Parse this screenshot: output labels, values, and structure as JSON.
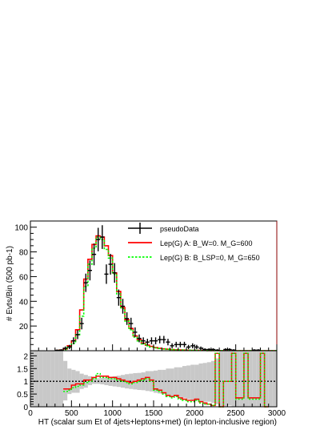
{
  "chart_data": [
    {
      "type": "line",
      "xlabel": "HT (scalar sum Et of 4jets+leptons+met) (in lepton-inclusive region)",
      "ylabel": "# Evts/Bin (500 pb-1)",
      "xlim": [
        0,
        3000
      ],
      "ylim": [
        0,
        105
      ],
      "xticks": [
        "0",
        "500",
        "1000",
        "1500",
        "2000",
        "2500",
        "3000"
      ],
      "yticks": [
        "20",
        "40",
        "60",
        "80",
        "100"
      ],
      "legend_position": "top-right",
      "series": [
        {
          "name": "pseudoData",
          "style": "points-with-error-bars",
          "color": "#000000",
          "x": [
            325,
            375,
            425,
            475,
            525,
            575,
            625,
            675,
            725,
            775,
            825,
            875,
            925,
            975,
            1025,
            1075,
            1125,
            1175,
            1225,
            1275,
            1325,
            1375,
            1425,
            1475,
            1525,
            1575,
            1625,
            1675,
            1725,
            1775,
            1825,
            1875,
            1925,
            1975,
            2025,
            2075,
            2125,
            2175,
            2225,
            2275,
            2375,
            2425,
            2475,
            2725,
            2775
          ],
          "y": [
            0.3,
            0.5,
            2,
            3,
            8,
            13,
            22,
            55,
            65,
            78,
            90,
            92,
            62,
            70,
            63,
            43,
            36,
            26,
            22,
            15,
            10,
            8,
            7,
            8,
            8,
            9,
            9,
            7,
            4,
            5,
            5,
            5,
            3,
            4,
            3,
            2,
            1,
            1,
            1,
            0.5,
            1,
            1,
            0.5,
            0.5,
            0.5
          ]
        },
        {
          "name": "Lep(G) A: B_W=0. M_G=600",
          "style": "step",
          "color": "#ff0000",
          "bin_width": 50,
          "x": [
            325,
            375,
            425,
            475,
            525,
            575,
            625,
            675,
            725,
            775,
            825,
            875,
            925,
            975,
            1025,
            1075,
            1125,
            1175,
            1225,
            1275,
            1325,
            1375,
            1425,
            1475,
            1525,
            1575,
            1625,
            1675,
            1725,
            1775,
            1825,
            1875,
            1925,
            1975,
            2025,
            2075,
            2125,
            2175,
            2225,
            2275,
            2325,
            2375,
            2425,
            2475,
            2525,
            2575,
            2625,
            2675,
            2725,
            2775,
            2825,
            2875,
            2925,
            2975
          ],
          "y": [
            0.2,
            0.5,
            1.5,
            4,
            8,
            17,
            33,
            58,
            74,
            86,
            93,
            92,
            85,
            77,
            63,
            48,
            35,
            25,
            18,
            12,
            9,
            6,
            4.5,
            3.5,
            2.5,
            2,
            1.5,
            1.2,
            1,
            0.8,
            0.6,
            0.5,
            0.4,
            0.3,
            0.3,
            0.2,
            0.2,
            0.1,
            0.1,
            0.1,
            0.1,
            0.1,
            0.1,
            0.1,
            0.05,
            0.05,
            0.05,
            0.05,
            0.05,
            0.05,
            0.05,
            0.05,
            0.05,
            0.05
          ]
        },
        {
          "name": "Lep(G) B: B_LSP=0, M_G=650",
          "style": "dashed-step",
          "color": "#00ff00",
          "bin_width": 50,
          "x": [
            325,
            375,
            425,
            475,
            525,
            575,
            625,
            675,
            725,
            775,
            825,
            875,
            925,
            975,
            1025,
            1075,
            1125,
            1175,
            1225,
            1275,
            1325,
            1375,
            1425,
            1475,
            1525,
            1575,
            1625,
            1675,
            1725,
            1775,
            1825,
            1875,
            1925,
            1975,
            2025,
            2075,
            2125,
            2175,
            2225,
            2275,
            2325,
            2375,
            2425,
            2475,
            2525,
            2575,
            2625,
            2675,
            2725,
            2775,
            2825,
            2875,
            2925,
            2975
          ],
          "y": [
            0.1,
            0.3,
            1,
            3,
            6,
            13,
            28,
            52,
            70,
            83,
            92,
            90,
            82,
            75,
            62,
            46,
            34,
            24,
            17,
            11,
            8,
            5.5,
            4,
            3,
            2.3,
            1.8,
            1.4,
            1.1,
            0.9,
            0.7,
            0.6,
            0.5,
            0.4,
            0.3,
            0.3,
            0.2,
            0.2,
            0.1,
            0.1,
            0.1,
            0.1,
            0.1,
            0.1,
            0.1,
            0.05,
            0.05,
            0.05,
            0.05,
            0.05,
            0.05,
            0.05,
            0.05,
            0.05,
            0.05
          ]
        }
      ]
    },
    {
      "type": "line",
      "xlabel": "HT (scalar sum Et of 4jets+leptons+met) (in lepton-inclusive region)",
      "xlim": [
        0,
        3000
      ],
      "ylim": [
        0,
        2.2
      ],
      "yticks": [
        "0",
        "0.5",
        "1",
        "1.5",
        "2"
      ],
      "reference_line": 1,
      "series": [
        {
          "name": "ratio A",
          "style": "step",
          "color": "#ff0000",
          "bin_width": 50,
          "x": [
            425,
            475,
            525,
            575,
            625,
            675,
            725,
            775,
            825,
            875,
            925,
            975,
            1025,
            1075,
            1125,
            1175,
            1225,
            1275,
            1325,
            1375,
            1425,
            1475,
            1525,
            1575,
            1625,
            1675,
            1725,
            1775,
            1825,
            1875,
            1925,
            1975,
            2025,
            2075,
            2125,
            2175,
            2225,
            2275,
            2325,
            2375,
            2425,
            2475,
            2525,
            2575,
            2625,
            2675,
            2725,
            2775,
            2825,
            2875
          ],
          "y": [
            0.7,
            0.7,
            0.85,
            0.9,
            0.9,
            1.05,
            1.05,
            1.15,
            1.2,
            1.2,
            1.2,
            1.15,
            1.15,
            1.1,
            1.05,
            1.0,
            0.95,
            1.0,
            1.05,
            1.1,
            1.15,
            1.05,
            0.7,
            0.65,
            0.55,
            0.45,
            0.4,
            0.45,
            0.35,
            0.3,
            0.25,
            0.25,
            0.3,
            0.2,
            0.15,
            0.1,
            0.05,
            2.1,
            0.0,
            1.0,
            1.0,
            2.1,
            0.35,
            0.35,
            2.1,
            0.35,
            0.35,
            0.35,
            2.1,
            0.0
          ]
        },
        {
          "name": "ratio B",
          "style": "dashed-step",
          "color": "#00ff00",
          "bin_width": 50,
          "x": [
            425,
            475,
            525,
            575,
            625,
            675,
            725,
            775,
            825,
            875,
            925,
            975,
            1025,
            1075,
            1125,
            1175,
            1225,
            1275,
            1325,
            1375,
            1425,
            1475,
            1525,
            1575,
            1625,
            1675,
            1725,
            1775,
            1825,
            1875,
            1925,
            1975,
            2025,
            2075,
            2125,
            2175,
            2225,
            2275,
            2325,
            2375,
            2425,
            2475,
            2525,
            2575,
            2625,
            2675,
            2725,
            2775,
            2825,
            2875
          ],
          "y": [
            0.6,
            0.65,
            0.75,
            0.8,
            0.85,
            0.95,
            1.0,
            1.1,
            1.3,
            1.15,
            1.15,
            1.1,
            1.1,
            1.05,
            1.0,
            0.95,
            0.9,
            0.95,
            1.0,
            1.05,
            1.1,
            1.0,
            0.65,
            0.6,
            0.5,
            0.4,
            0.35,
            0.4,
            0.3,
            0.25,
            0.2,
            0.2,
            0.25,
            0.15,
            0.1,
            0.1,
            0.05,
            2.1,
            0.0,
            1.0,
            1.0,
            2.1,
            0.3,
            0.3,
            2.1,
            0.3,
            0.3,
            0.3,
            2.1,
            0.0
          ]
        },
        {
          "name": "uncertainty band",
          "style": "band",
          "color": "#c8c8c8",
          "bin_width": 50,
          "x": [
            0,
            25,
            75,
            125,
            175,
            225,
            275,
            325,
            375,
            425,
            475,
            525,
            575,
            625,
            675,
            725,
            775,
            825,
            875,
            925,
            975,
            1025,
            1075,
            1125,
            1175,
            1225,
            1275,
            1325,
            1375,
            1425,
            1475,
            1525,
            1575,
            1625,
            1675,
            1725,
            1775,
            1825,
            1875,
            1925,
            1975,
            2025,
            2075,
            2125,
            2175,
            2225,
            2275,
            2325,
            2375,
            2425,
            2475,
            2525,
            2575,
            2625,
            2675,
            2725,
            2775,
            2825,
            2875,
            2925,
            2975
          ],
          "low": [
            0,
            0,
            0,
            0,
            0,
            0,
            0,
            0,
            0,
            0.25,
            0.5,
            0.55,
            0.55,
            0.7,
            0.75,
            0.85,
            0.9,
            0.9,
            0.88,
            0.85,
            0.82,
            0.8,
            0.78,
            0.75,
            0.72,
            0.7,
            0.68,
            0.66,
            0.65,
            0.62,
            0.6,
            0.55,
            0.52,
            0.5,
            0.45,
            0.42,
            0.4,
            0.38,
            0.35,
            0.3,
            0.28,
            0.25,
            0.22,
            0.2,
            0.2,
            0.15,
            0.1,
            0,
            0,
            0.05,
            0,
            0,
            0,
            0,
            0,
            0,
            0,
            0,
            0,
            0,
            0
          ],
          "high": [
            2.2,
            2.2,
            2.2,
            2.2,
            2.2,
            2.2,
            2.2,
            2.2,
            2.2,
            1.8,
            1.5,
            1.45,
            1.4,
            1.3,
            1.25,
            1.2,
            1.15,
            1.12,
            1.13,
            1.15,
            1.18,
            1.2,
            1.22,
            1.25,
            1.28,
            1.3,
            1.32,
            1.33,
            1.35,
            1.4,
            1.4,
            1.42,
            1.45,
            1.45,
            1.5,
            1.5,
            1.55,
            1.55,
            1.6,
            1.62,
            1.65,
            1.65,
            1.7,
            1.72,
            1.75,
            1.8,
            1.9,
            2.2,
            2.2,
            2.2,
            2.2,
            2.2,
            2.2,
            2.2,
            2.2,
            2.2,
            2.2,
            2.2,
            2.2,
            2.2,
            2.2
          ]
        }
      ]
    }
  ],
  "axis_labels": {
    "xlabel": "HT (scalar sum Et of 4jets+leptons+met) (in lepton-inclusive region)",
    "ylabel": "# Evts/Bin (500 pb-1)"
  },
  "legend": {
    "items": [
      {
        "label": "pseudoData",
        "color": "#000000",
        "style": "marker"
      },
      {
        "label": "Lep(G) A: B_W=0. M_G=600",
        "color": "#ff0000",
        "style": "solid"
      },
      {
        "label": "Lep(G) B: B_LSP=0, M_G=650",
        "color": "#00ff00",
        "style": "dashed"
      }
    ]
  }
}
